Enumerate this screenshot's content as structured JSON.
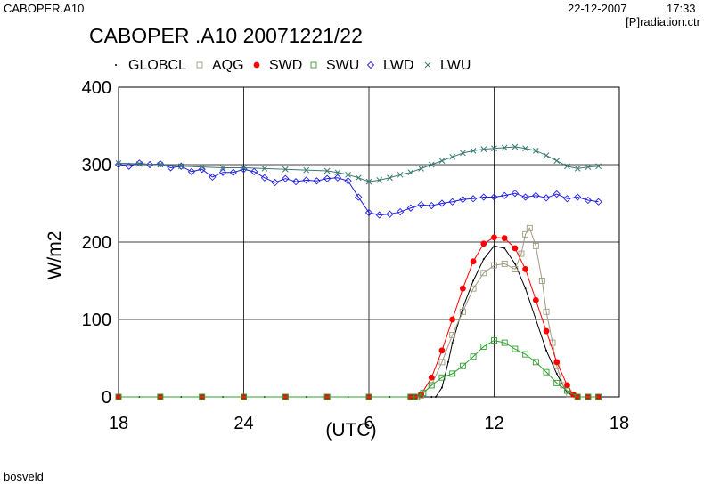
{
  "header": {
    "station": "CABOPER.A10",
    "date": "22-12-2007",
    "time": "17:33",
    "file": "[P]radiation.ctr"
  },
  "footer": {
    "author": "bosveld"
  },
  "chart_data": {
    "type": "line",
    "title": "CABOPER .A10 20071221/22",
    "xlabel": "(UTC)",
    "ylabel": "W/m2",
    "x_ticks": [
      "18",
      "24",
      "6",
      "12",
      "18"
    ],
    "y_ticks": [
      "0",
      "100",
      "200",
      "300",
      "400"
    ],
    "xlim_hours": [
      0,
      24
    ],
    "ylim": [
      0,
      400
    ],
    "grid": true,
    "legend_position": "top",
    "series": [
      {
        "name": "GLOBCL",
        "color": "#000000",
        "marker": "dot",
        "x": [
          0,
          1,
          2,
          3,
          4,
          5,
          6,
          7,
          8,
          9,
          10,
          11,
          12,
          13,
          14,
          14.5,
          15,
          15.2,
          15.5,
          15.8,
          16,
          16.5,
          17,
          17.5,
          18,
          18.5,
          19,
          19.5,
          20,
          20.5,
          21,
          21.5,
          22,
          23,
          23
        ],
        "y": [
          0,
          0,
          0,
          0,
          0,
          0,
          0,
          0,
          0,
          0,
          0,
          0,
          0,
          0,
          0,
          0,
          0,
          0,
          12,
          45,
          70,
          115,
          150,
          178,
          195,
          192,
          172,
          140,
          100,
          60,
          30,
          5,
          0,
          0,
          0
        ]
      },
      {
        "name": "AQG",
        "color": "#a09a80",
        "marker": "square",
        "x": [
          0,
          2,
          4,
          6,
          8,
          10,
          12,
          14,
          14.2,
          14.5,
          15,
          15.5,
          16,
          16.5,
          17,
          17.5,
          18,
          18.5,
          19,
          19.3,
          19.5,
          19.7,
          20,
          20.3,
          20.5,
          20.8,
          21,
          21.3,
          21.6,
          22,
          22.5,
          23
        ],
        "y": [
          0,
          0,
          0,
          0,
          0,
          0,
          0,
          0,
          0,
          2,
          15,
          45,
          80,
          110,
          140,
          160,
          170,
          172,
          165,
          185,
          210,
          218,
          195,
          150,
          110,
          70,
          40,
          15,
          3,
          0,
          0,
          0
        ]
      },
      {
        "name": "SWD",
        "color": "#ff0000",
        "marker": "filled-circle",
        "x": [
          0,
          2,
          4,
          6,
          8,
          10,
          12,
          14,
          14.2,
          14.5,
          15,
          15.5,
          16,
          16.5,
          17,
          17.5,
          18,
          18.5,
          19,
          19.5,
          20,
          20.5,
          21,
          21.5,
          21.8,
          22,
          22.5,
          23
        ],
        "y": [
          0,
          0,
          0,
          0,
          0,
          0,
          0,
          0,
          0,
          3,
          25,
          60,
          100,
          140,
          175,
          198,
          206,
          205,
          192,
          165,
          125,
          85,
          45,
          15,
          3,
          0,
          0,
          0
        ]
      },
      {
        "name": "SWU",
        "color": "#2ea02e",
        "marker": "square",
        "x": [
          0,
          2,
          4,
          6,
          8,
          10,
          12,
          14,
          14.3,
          14.6,
          15,
          15.5,
          16,
          16.5,
          17,
          17.5,
          18,
          18.5,
          19,
          19.5,
          20,
          20.5,
          21,
          21.5,
          22,
          22.5,
          23
        ],
        "y": [
          0,
          0,
          0,
          0,
          0,
          0,
          0,
          0,
          0,
          5,
          15,
          25,
          30,
          40,
          52,
          65,
          73,
          70,
          62,
          55,
          45,
          32,
          18,
          8,
          0,
          0,
          0
        ]
      },
      {
        "name": "LWD",
        "color": "#2020e0",
        "marker": "diamond",
        "x": [
          0,
          0.5,
          1,
          1.5,
          2,
          2.5,
          3,
          3.5,
          4,
          4.5,
          5,
          5.5,
          6,
          6.5,
          7,
          7.5,
          8,
          8.5,
          9,
          9.5,
          10,
          10.5,
          11,
          11.5,
          12,
          12.5,
          13,
          13.5,
          14,
          14.5,
          15,
          15.5,
          16,
          16.5,
          17,
          17.5,
          18,
          18.5,
          19,
          19.5,
          20,
          20.5,
          21,
          21.5,
          22,
          22.5,
          23
        ],
        "y": [
          300,
          298,
          302,
          300,
          301,
          296,
          298,
          291,
          294,
          284,
          290,
          290,
          294,
          291,
          283,
          277,
          282,
          278,
          280,
          279,
          282,
          283,
          279,
          258,
          238,
          235,
          236,
          239,
          244,
          248,
          247,
          250,
          252,
          255,
          256,
          258,
          258,
          260,
          263,
          258,
          260,
          257,
          262,
          256,
          258,
          254,
          252
        ]
      },
      {
        "name": "LWU",
        "color": "#3a7a70",
        "marker": "x",
        "x": [
          0,
          1,
          2,
          3,
          4,
          5,
          6,
          7,
          8,
          9,
          10,
          10.5,
          11,
          11.5,
          12,
          12.5,
          13,
          13.5,
          14,
          14.5,
          15,
          15.5,
          16,
          16.5,
          17,
          17.5,
          18,
          18.5,
          19,
          19.5,
          20,
          20.5,
          21,
          21.5,
          22,
          22.5,
          23
        ],
        "y": [
          302,
          301,
          300,
          298,
          297,
          296,
          296,
          295,
          294,
          293,
          292,
          290,
          287,
          283,
          278,
          280,
          283,
          287,
          290,
          295,
          300,
          305,
          310,
          315,
          318,
          320,
          321,
          322,
          323,
          321,
          318,
          312,
          305,
          298,
          295,
          297,
          298
        ]
      }
    ]
  }
}
